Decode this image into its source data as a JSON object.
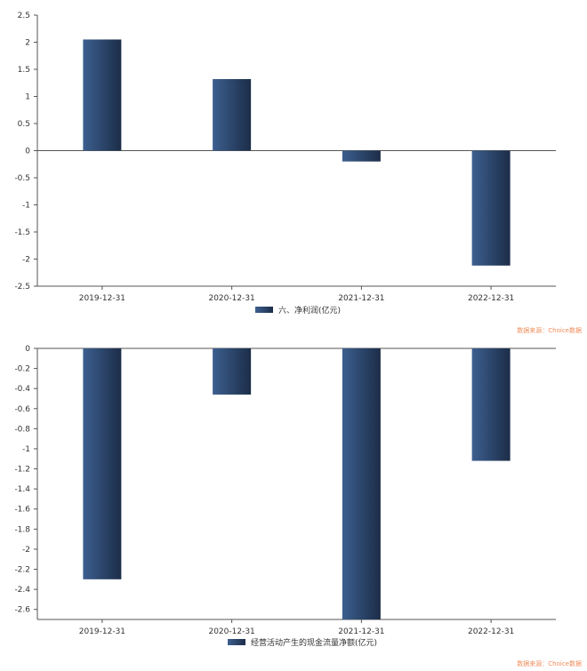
{
  "source_label": "数据来源：Choice数据",
  "colors": {
    "bar_light": "#3c5f8f",
    "bar_dark": "#1c2d48",
    "axis": "#555555",
    "source": "#f08c5a"
  },
  "chart_data": [
    {
      "type": "bar",
      "title": "",
      "xlabel": "",
      "ylabel": "",
      "categories": [
        "2019-12-31",
        "2020-12-31",
        "2021-12-31",
        "2022-12-31"
      ],
      "series": [
        {
          "name": "六、净利润(亿元)",
          "values": [
            2.05,
            1.32,
            -0.2,
            -2.12
          ]
        }
      ],
      "ylim": [
        -2.5,
        2.5
      ],
      "yticks": [
        2.5,
        2,
        1.5,
        1,
        0.5,
        0,
        -0.5,
        -1,
        -1.5,
        -2,
        -2.5
      ],
      "ytick_labels": [
        "2.5",
        "2",
        "1.5",
        "1",
        "0.5",
        "0",
        "-0.5",
        "-1",
        "-1.5",
        "-2",
        "-2.5"
      ],
      "grid": false,
      "legend": "bottom-center"
    },
    {
      "type": "bar",
      "title": "",
      "xlabel": "",
      "ylabel": "",
      "categories": [
        "2019-12-31",
        "2020-12-31",
        "2021-12-31",
        "2022-12-31"
      ],
      "series": [
        {
          "name": "经营活动产生的现金流量净额(亿元)",
          "values": [
            -2.3,
            -0.46,
            -2.7,
            -1.12
          ]
        }
      ],
      "ylim": [
        -2.7,
        0
      ],
      "yticks": [
        0,
        -0.2,
        -0.4,
        -0.6,
        -0.8,
        -1,
        -1.2,
        -1.4,
        -1.6,
        -1.8,
        -2,
        -2.2,
        -2.4,
        -2.6
      ],
      "ytick_labels": [
        "0",
        "-0.2",
        "-0.4",
        "-0.6",
        "-0.8",
        "-1",
        "-1.2",
        "-1.4",
        "-1.6",
        "-1.8",
        "-2",
        "-2.2",
        "-2.4",
        "-2.6"
      ],
      "grid": false,
      "legend": "bottom-center"
    }
  ]
}
